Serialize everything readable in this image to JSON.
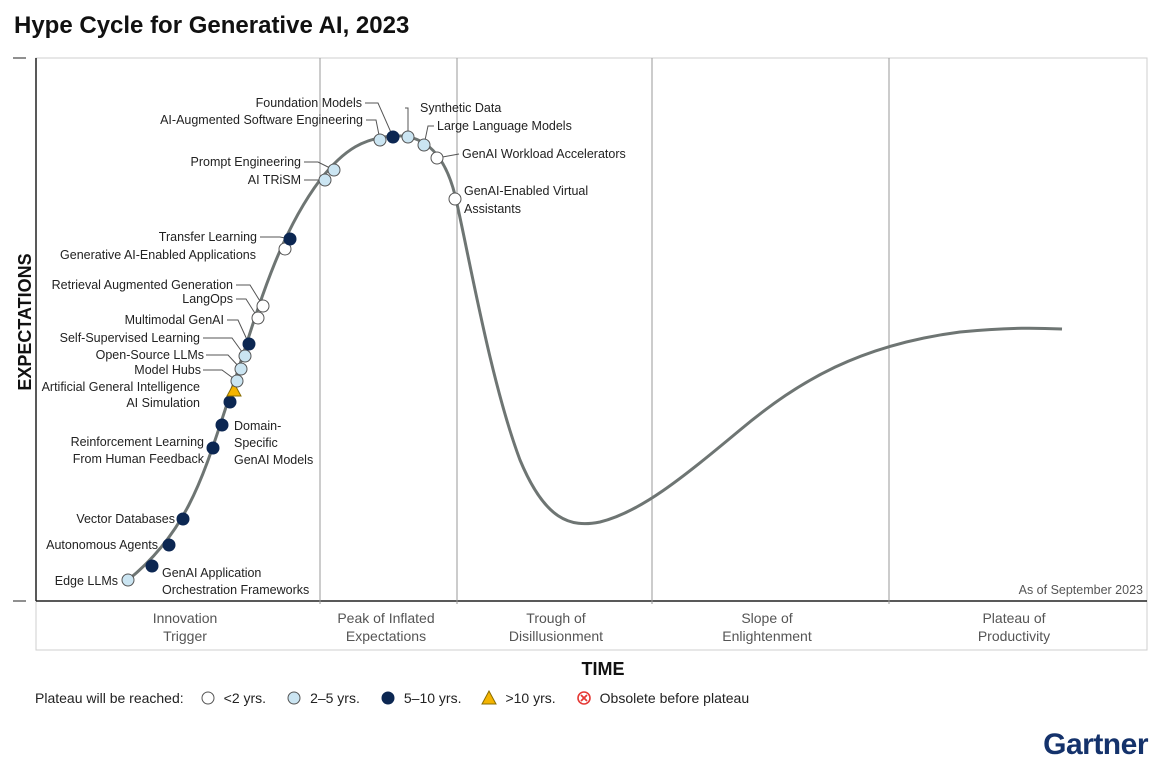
{
  "title": "Hype Cycle for Generative AI, 2023",
  "brand": "Gartner",
  "colors": {
    "lt2": "#ffffff",
    "2to5": "#cbe5f2",
    "5to10": "#0c2752",
    "gt10": "#f4b400",
    "obsolete": "#e53935",
    "curve": "#6e7573"
  },
  "chart_data": {
    "type": "hype-cycle",
    "xlabel": "TIME",
    "ylabel": "EXPECTATIONS",
    "as_of": "As of September 2023",
    "phases": [
      {
        "lines": [
          "Innovation",
          "Trigger"
        ]
      },
      {
        "lines": [
          "Peak of Inflated",
          "Expectations"
        ]
      },
      {
        "lines": [
          "Trough of",
          "Disillusionment"
        ]
      },
      {
        "lines": [
          "Slope of",
          "Enlightenment"
        ]
      },
      {
        "lines": [
          "Plateau of",
          "Productivity"
        ]
      }
    ],
    "technologies": [
      {
        "name": "Edge LLMs",
        "plateau": "2-5"
      },
      {
        "name": "GenAI Application Orchestration Frameworks",
        "plateau": "5-10"
      },
      {
        "name": "Autonomous Agents",
        "plateau": "5-10"
      },
      {
        "name": "Vector Databases",
        "plateau": "5-10"
      },
      {
        "name": "Reinforcement Learning From Human Feedback",
        "plateau": "5-10"
      },
      {
        "name": "Domain-Specific GenAI Models",
        "plateau": "5-10"
      },
      {
        "name": "AI Simulation",
        "plateau": "5-10"
      },
      {
        "name": "Artificial General Intelligence",
        "plateau": ">10"
      },
      {
        "name": "Model Hubs",
        "plateau": "2-5"
      },
      {
        "name": "Open-Source LLMs",
        "plateau": "2-5"
      },
      {
        "name": "Self-Supervised Learning",
        "plateau": "2-5"
      },
      {
        "name": "Multimodal GenAI",
        "plateau": "5-10"
      },
      {
        "name": "LangOps",
        "plateau": "<2"
      },
      {
        "name": "Retrieval Augmented Generation",
        "plateau": "<2"
      },
      {
        "name": "Generative AI-Enabled Applications",
        "plateau": "<2"
      },
      {
        "name": "Transfer Learning",
        "plateau": "5-10"
      },
      {
        "name": "AI TRiSM",
        "plateau": "2-5"
      },
      {
        "name": "Prompt Engineering",
        "plateau": "2-5"
      },
      {
        "name": "AI-Augmented Software Engineering",
        "plateau": "2-5"
      },
      {
        "name": "Foundation Models",
        "plateau": "5-10"
      },
      {
        "name": "Synthetic Data",
        "plateau": "2-5"
      },
      {
        "name": "Large Language Models",
        "plateau": "2-5"
      },
      {
        "name": "GenAI Workload Accelerators",
        "plateau": "<2"
      },
      {
        "name": "GenAI-Enabled Virtual Assistants",
        "plateau": "<2"
      }
    ]
  },
  "legend": {
    "label": "Plateau will be reached:",
    "items": [
      {
        "key": "<2",
        "label": "<2 yrs."
      },
      {
        "key": "2-5",
        "label": "2–5 yrs."
      },
      {
        "key": "5-10",
        "label": "5–10 yrs."
      },
      {
        "key": ">10",
        "label": ">10 yrs."
      },
      {
        "key": "obsolete",
        "label": "Obsolete before plateau"
      }
    ]
  }
}
